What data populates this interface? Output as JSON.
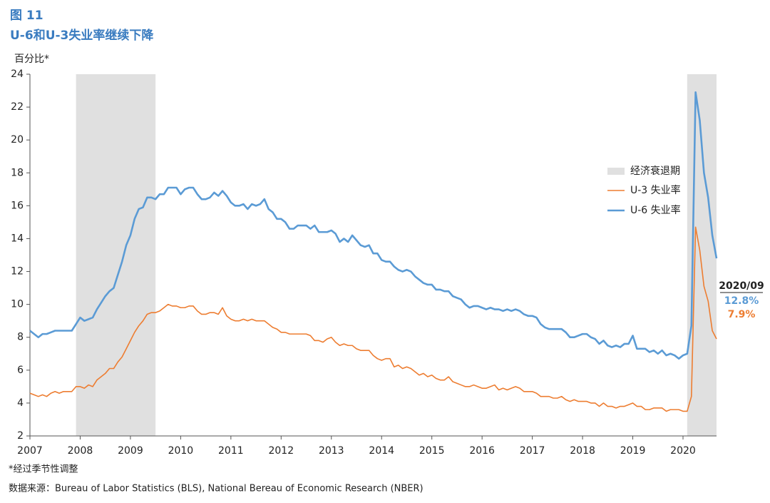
{
  "chart_data": {
    "type": "line",
    "title": "图 11",
    "subtitle": "U-6和U-3失业率继续下降",
    "y_label": "百分比*",
    "footnote": "*经过季节性调整",
    "source": "数据来源：Bureau of Labor Statistics (BLS), National Bereau of Economic Research (NBER)",
    "xlim": [
      2007,
      2020.667
    ],
    "xticks": [
      2007,
      2008,
      2009,
      2010,
      2011,
      2012,
      2013,
      2014,
      2015,
      2016,
      2017,
      2018,
      2019,
      2020
    ],
    "ylim": [
      2,
      24
    ],
    "yticks": [
      2,
      4,
      6,
      8,
      10,
      12,
      14,
      16,
      18,
      20,
      22,
      24
    ],
    "recession": {
      "name": "经济衰退期",
      "color": "#e0e0e0",
      "spans": [
        [
          2007.917,
          2009.5
        ],
        [
          2020.083,
          2020.667
        ]
      ]
    },
    "annotation": "2020/09",
    "x": [
      2007,
      2007.083,
      2007.167,
      2007.25,
      2007.333,
      2007.417,
      2007.5,
      2007.583,
      2007.667,
      2007.75,
      2007.833,
      2007.917,
      2008,
      2008.083,
      2008.167,
      2008.25,
      2008.333,
      2008.417,
      2008.5,
      2008.583,
      2008.667,
      2008.75,
      2008.833,
      2008.917,
      2009,
      2009.083,
      2009.167,
      2009.25,
      2009.333,
      2009.417,
      2009.5,
      2009.583,
      2009.667,
      2009.75,
      2009.833,
      2009.917,
      2010,
      2010.083,
      2010.167,
      2010.25,
      2010.333,
      2010.417,
      2010.5,
      2010.583,
      2010.667,
      2010.75,
      2010.833,
      2010.917,
      2011,
      2011.083,
      2011.167,
      2011.25,
      2011.333,
      2011.417,
      2011.5,
      2011.583,
      2011.667,
      2011.75,
      2011.833,
      2011.917,
      2012,
      2012.083,
      2012.167,
      2012.25,
      2012.333,
      2012.417,
      2012.5,
      2012.583,
      2012.667,
      2012.75,
      2012.833,
      2012.917,
      2013,
      2013.083,
      2013.167,
      2013.25,
      2013.333,
      2013.417,
      2013.5,
      2013.583,
      2013.667,
      2013.75,
      2013.833,
      2013.917,
      2014,
      2014.083,
      2014.167,
      2014.25,
      2014.333,
      2014.417,
      2014.5,
      2014.583,
      2014.667,
      2014.75,
      2014.833,
      2014.917,
      2015,
      2015.083,
      2015.167,
      2015.25,
      2015.333,
      2015.417,
      2015.5,
      2015.583,
      2015.667,
      2015.75,
      2015.833,
      2015.917,
      2016,
      2016.083,
      2016.167,
      2016.25,
      2016.333,
      2016.417,
      2016.5,
      2016.583,
      2016.667,
      2016.75,
      2016.833,
      2016.917,
      2017,
      2017.083,
      2017.167,
      2017.25,
      2017.333,
      2017.417,
      2017.5,
      2017.583,
      2017.667,
      2017.75,
      2017.833,
      2017.917,
      2018,
      2018.083,
      2018.167,
      2018.25,
      2018.333,
      2018.417,
      2018.5,
      2018.583,
      2018.667,
      2018.75,
      2018.833,
      2018.917,
      2019,
      2019.083,
      2019.167,
      2019.25,
      2019.333,
      2019.417,
      2019.5,
      2019.583,
      2019.667,
      2019.75,
      2019.833,
      2019.917,
      2020,
      2020.083,
      2020.167,
      2020.25,
      2020.333,
      2020.417,
      2020.5,
      2020.583,
      2020.667
    ],
    "series": [
      {
        "name": "U-3 失业率",
        "color": "#ed7d31",
        "end_label": "7.9%",
        "values": [
          4.6,
          4.5,
          4.4,
          4.5,
          4.4,
          4.6,
          4.7,
          4.6,
          4.7,
          4.7,
          4.7,
          5.0,
          5.0,
          4.9,
          5.1,
          5.0,
          5.4,
          5.6,
          5.8,
          6.1,
          6.1,
          6.5,
          6.8,
          7.3,
          7.8,
          8.3,
          8.7,
          9.0,
          9.4,
          9.5,
          9.5,
          9.6,
          9.8,
          10.0,
          9.9,
          9.9,
          9.8,
          9.8,
          9.9,
          9.9,
          9.6,
          9.4,
          9.4,
          9.5,
          9.5,
          9.4,
          9.8,
          9.3,
          9.1,
          9.0,
          9.0,
          9.1,
          9.0,
          9.1,
          9.0,
          9.0,
          9.0,
          8.8,
          8.6,
          8.5,
          8.3,
          8.3,
          8.2,
          8.2,
          8.2,
          8.2,
          8.2,
          8.1,
          7.8,
          7.8,
          7.7,
          7.9,
          8.0,
          7.7,
          7.5,
          7.6,
          7.5,
          7.5,
          7.3,
          7.2,
          7.2,
          7.2,
          6.9,
          6.7,
          6.6,
          6.7,
          6.7,
          6.2,
          6.3,
          6.1,
          6.2,
          6.1,
          5.9,
          5.7,
          5.8,
          5.6,
          5.7,
          5.5,
          5.4,
          5.4,
          5.6,
          5.3,
          5.2,
          5.1,
          5.0,
          5.0,
          5.1,
          5.0,
          4.9,
          4.9,
          5.0,
          5.1,
          4.8,
          4.9,
          4.8,
          4.9,
          5.0,
          4.9,
          4.7,
          4.7,
          4.7,
          4.6,
          4.4,
          4.4,
          4.4,
          4.3,
          4.3,
          4.4,
          4.2,
          4.1,
          4.2,
          4.1,
          4.1,
          4.1,
          4.0,
          4.0,
          3.8,
          4.0,
          3.8,
          3.8,
          3.7,
          3.8,
          3.8,
          3.9,
          4.0,
          3.8,
          3.8,
          3.6,
          3.6,
          3.7,
          3.7,
          3.7,
          3.5,
          3.6,
          3.6,
          3.6,
          3.5,
          3.5,
          4.4,
          14.7,
          13.3,
          11.1,
          10.2,
          8.4,
          7.9
        ]
      },
      {
        "name": "U-6 失业率",
        "color": "#5b9bd5",
        "end_label": "12.8%",
        "values": [
          8.4,
          8.2,
          8.0,
          8.2,
          8.2,
          8.3,
          8.4,
          8.4,
          8.4,
          8.4,
          8.4,
          8.8,
          9.2,
          9.0,
          9.1,
          9.2,
          9.7,
          10.1,
          10.5,
          10.8,
          11.0,
          11.8,
          12.6,
          13.6,
          14.2,
          15.2,
          15.8,
          15.9,
          16.5,
          16.5,
          16.4,
          16.7,
          16.7,
          17.1,
          17.1,
          17.1,
          16.7,
          17.0,
          17.1,
          17.1,
          16.7,
          16.4,
          16.4,
          16.5,
          16.8,
          16.6,
          16.9,
          16.6,
          16.2,
          16.0,
          16.0,
          16.1,
          15.8,
          16.1,
          16.0,
          16.1,
          16.4,
          15.8,
          15.6,
          15.2,
          15.2,
          15.0,
          14.6,
          14.6,
          14.8,
          14.8,
          14.8,
          14.6,
          14.8,
          14.4,
          14.4,
          14.4,
          14.5,
          14.3,
          13.8,
          14.0,
          13.8,
          14.2,
          13.9,
          13.6,
          13.5,
          13.6,
          13.1,
          13.1,
          12.7,
          12.6,
          12.6,
          12.3,
          12.1,
          12.0,
          12.1,
          12.0,
          11.7,
          11.5,
          11.3,
          11.2,
          11.2,
          10.9,
          10.9,
          10.8,
          10.8,
          10.5,
          10.4,
          10.3,
          10.0,
          9.8,
          9.9,
          9.9,
          9.8,
          9.7,
          9.8,
          9.7,
          9.7,
          9.6,
          9.7,
          9.6,
          9.7,
          9.6,
          9.4,
          9.3,
          9.3,
          9.2,
          8.8,
          8.6,
          8.5,
          8.5,
          8.5,
          8.5,
          8.3,
          8.0,
          8.0,
          8.1,
          8.2,
          8.2,
          8.0,
          7.9,
          7.6,
          7.8,
          7.5,
          7.4,
          7.5,
          7.4,
          7.6,
          7.6,
          8.1,
          7.3,
          7.3,
          7.3,
          7.1,
          7.2,
          7.0,
          7.2,
          6.9,
          7.0,
          6.9,
          6.7,
          6.9,
          7.0,
          8.7,
          22.9,
          21.2,
          18.0,
          16.5,
          14.2,
          12.8
        ]
      }
    ]
  }
}
